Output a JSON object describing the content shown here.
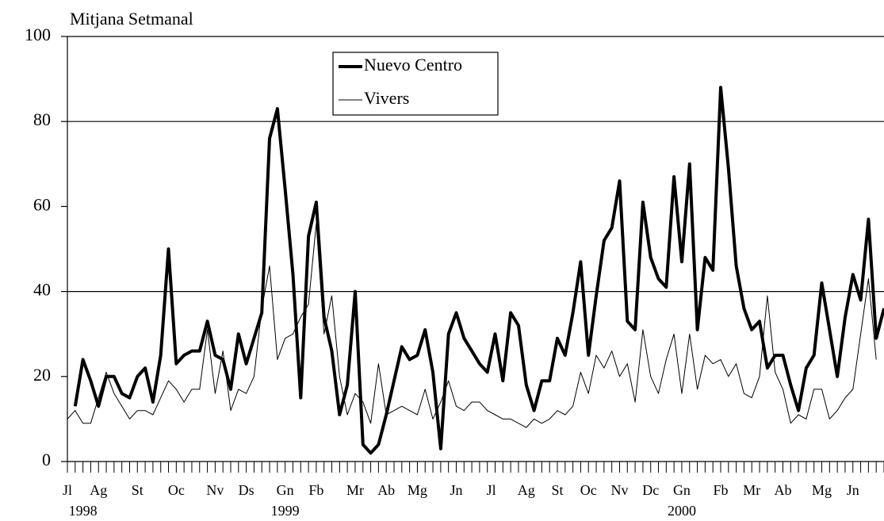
{
  "chart_data": {
    "type": "line",
    "title": "Mitjana Setmanal",
    "x": [
      0,
      1,
      2,
      3,
      4,
      5,
      6,
      7,
      8,
      9,
      10,
      11,
      12,
      13,
      14,
      15,
      16,
      17,
      18,
      19,
      20,
      21,
      22,
      23,
      24,
      25,
      26,
      27,
      28,
      29,
      30,
      31,
      32,
      33,
      34,
      35,
      36,
      37,
      38,
      39,
      40,
      41,
      42,
      43,
      44,
      45,
      46,
      47,
      48,
      49,
      50,
      51,
      52,
      53,
      54,
      55,
      56,
      57,
      58,
      59,
      60,
      61,
      62,
      63,
      64,
      65,
      66,
      67,
      68,
      69,
      70,
      71,
      72,
      73,
      74,
      75,
      76,
      77,
      78,
      79,
      80,
      81,
      82,
      83,
      84,
      85,
      86,
      87,
      88,
      89,
      90,
      91,
      92,
      93,
      94,
      95,
      96,
      97,
      98,
      99,
      100,
      101,
      102,
      103,
      104,
      105
    ],
    "series": [
      {
        "name": "Nuevo Centro",
        "color": "#000000",
        "width": 4,
        "values": [
          null,
          13,
          24,
          19,
          13,
          20,
          20,
          16,
          15,
          20,
          22,
          14,
          25,
          50,
          23,
          25,
          26,
          26,
          33,
          25,
          24,
          17,
          30,
          23,
          29,
          35,
          76,
          83,
          64,
          44,
          15,
          53,
          61,
          34,
          26,
          11,
          18,
          40,
          4,
          2,
          4,
          11,
          19,
          27,
          24,
          25,
          31,
          21,
          3,
          30,
          35,
          29,
          26,
          23,
          21,
          30,
          19,
          35,
          32,
          18,
          12,
          19,
          19,
          29,
          25,
          35,
          47,
          25,
          39,
          52,
          55,
          66,
          33,
          31,
          61,
          48,
          43,
          41,
          67,
          47,
          70,
          31,
          48,
          45,
          88,
          69,
          46,
          36,
          31,
          33,
          22,
          25,
          25,
          18,
          12,
          22,
          25,
          42,
          31,
          20,
          34,
          44,
          38,
          57,
          29,
          36
        ]
      },
      {
        "name": "Vivers",
        "color": "#000000",
        "width": 1,
        "values": [
          10,
          12,
          9,
          9,
          15,
          21,
          16,
          13,
          10,
          12,
          12,
          11,
          15,
          19,
          17,
          14,
          17,
          17,
          31,
          16,
          26,
          12,
          17,
          16,
          20,
          36,
          46,
          24,
          29,
          30,
          34,
          37,
          56,
          30,
          39,
          20,
          11,
          16,
          14,
          9,
          23,
          11,
          12,
          13,
          12,
          11,
          17,
          10,
          14,
          19,
          13,
          12,
          14,
          14,
          12,
          11,
          10,
          10,
          9,
          8,
          10,
          9,
          10,
          12,
          11,
          13,
          21,
          16,
          25,
          22,
          26,
          20,
          23,
          14,
          31,
          20,
          16,
          24,
          30,
          16,
          30,
          17,
          25,
          23,
          24,
          20,
          23,
          16,
          15,
          20,
          39,
          21,
          17,
          9,
          11,
          10,
          17,
          17,
          10,
          12,
          15,
          17,
          30,
          43,
          24,
          null
        ]
      }
    ],
    "xlim": [
      0,
      105
    ],
    "xticks": [
      {
        "value": 0,
        "label": "Jl"
      },
      {
        "value": 4,
        "label": "Ag"
      },
      {
        "value": 9,
        "label": "St"
      },
      {
        "value": 14,
        "label": "Oc"
      },
      {
        "value": 19,
        "label": "Nv"
      },
      {
        "value": 23,
        "label": "Ds"
      },
      {
        "value": 28,
        "label": "Gn"
      },
      {
        "value": 32,
        "label": "Fb"
      },
      {
        "value": 37,
        "label": "Mr"
      },
      {
        "value": 41,
        "label": "Ab"
      },
      {
        "value": 45,
        "label": "Mg"
      },
      {
        "value": 50,
        "label": "Jn"
      },
      {
        "value": 54.5,
        "label": "Jl"
      },
      {
        "value": 59,
        "label": "Ag"
      },
      {
        "value": 63,
        "label": "St"
      },
      {
        "value": 67,
        "label": "Oc"
      },
      {
        "value": 71,
        "label": "Nv"
      },
      {
        "value": 75,
        "label": "Dc"
      },
      {
        "value": 79,
        "label": "Gn"
      },
      {
        "value": 84,
        "label": "Fb"
      },
      {
        "value": 88,
        "label": "Mr"
      },
      {
        "value": 92,
        "label": "Ab"
      },
      {
        "value": 97,
        "label": "Mg"
      },
      {
        "value": 101,
        "label": "Jn"
      }
    ],
    "year_labels": [
      {
        "value": 2,
        "label": "1998"
      },
      {
        "value": 28,
        "label": "1999"
      },
      {
        "value": 79,
        "label": "2000"
      }
    ],
    "ylim": [
      0,
      100
    ],
    "yticks": [
      0,
      20,
      40,
      60,
      80,
      100
    ],
    "gridlines": [
      40,
      80
    ]
  }
}
